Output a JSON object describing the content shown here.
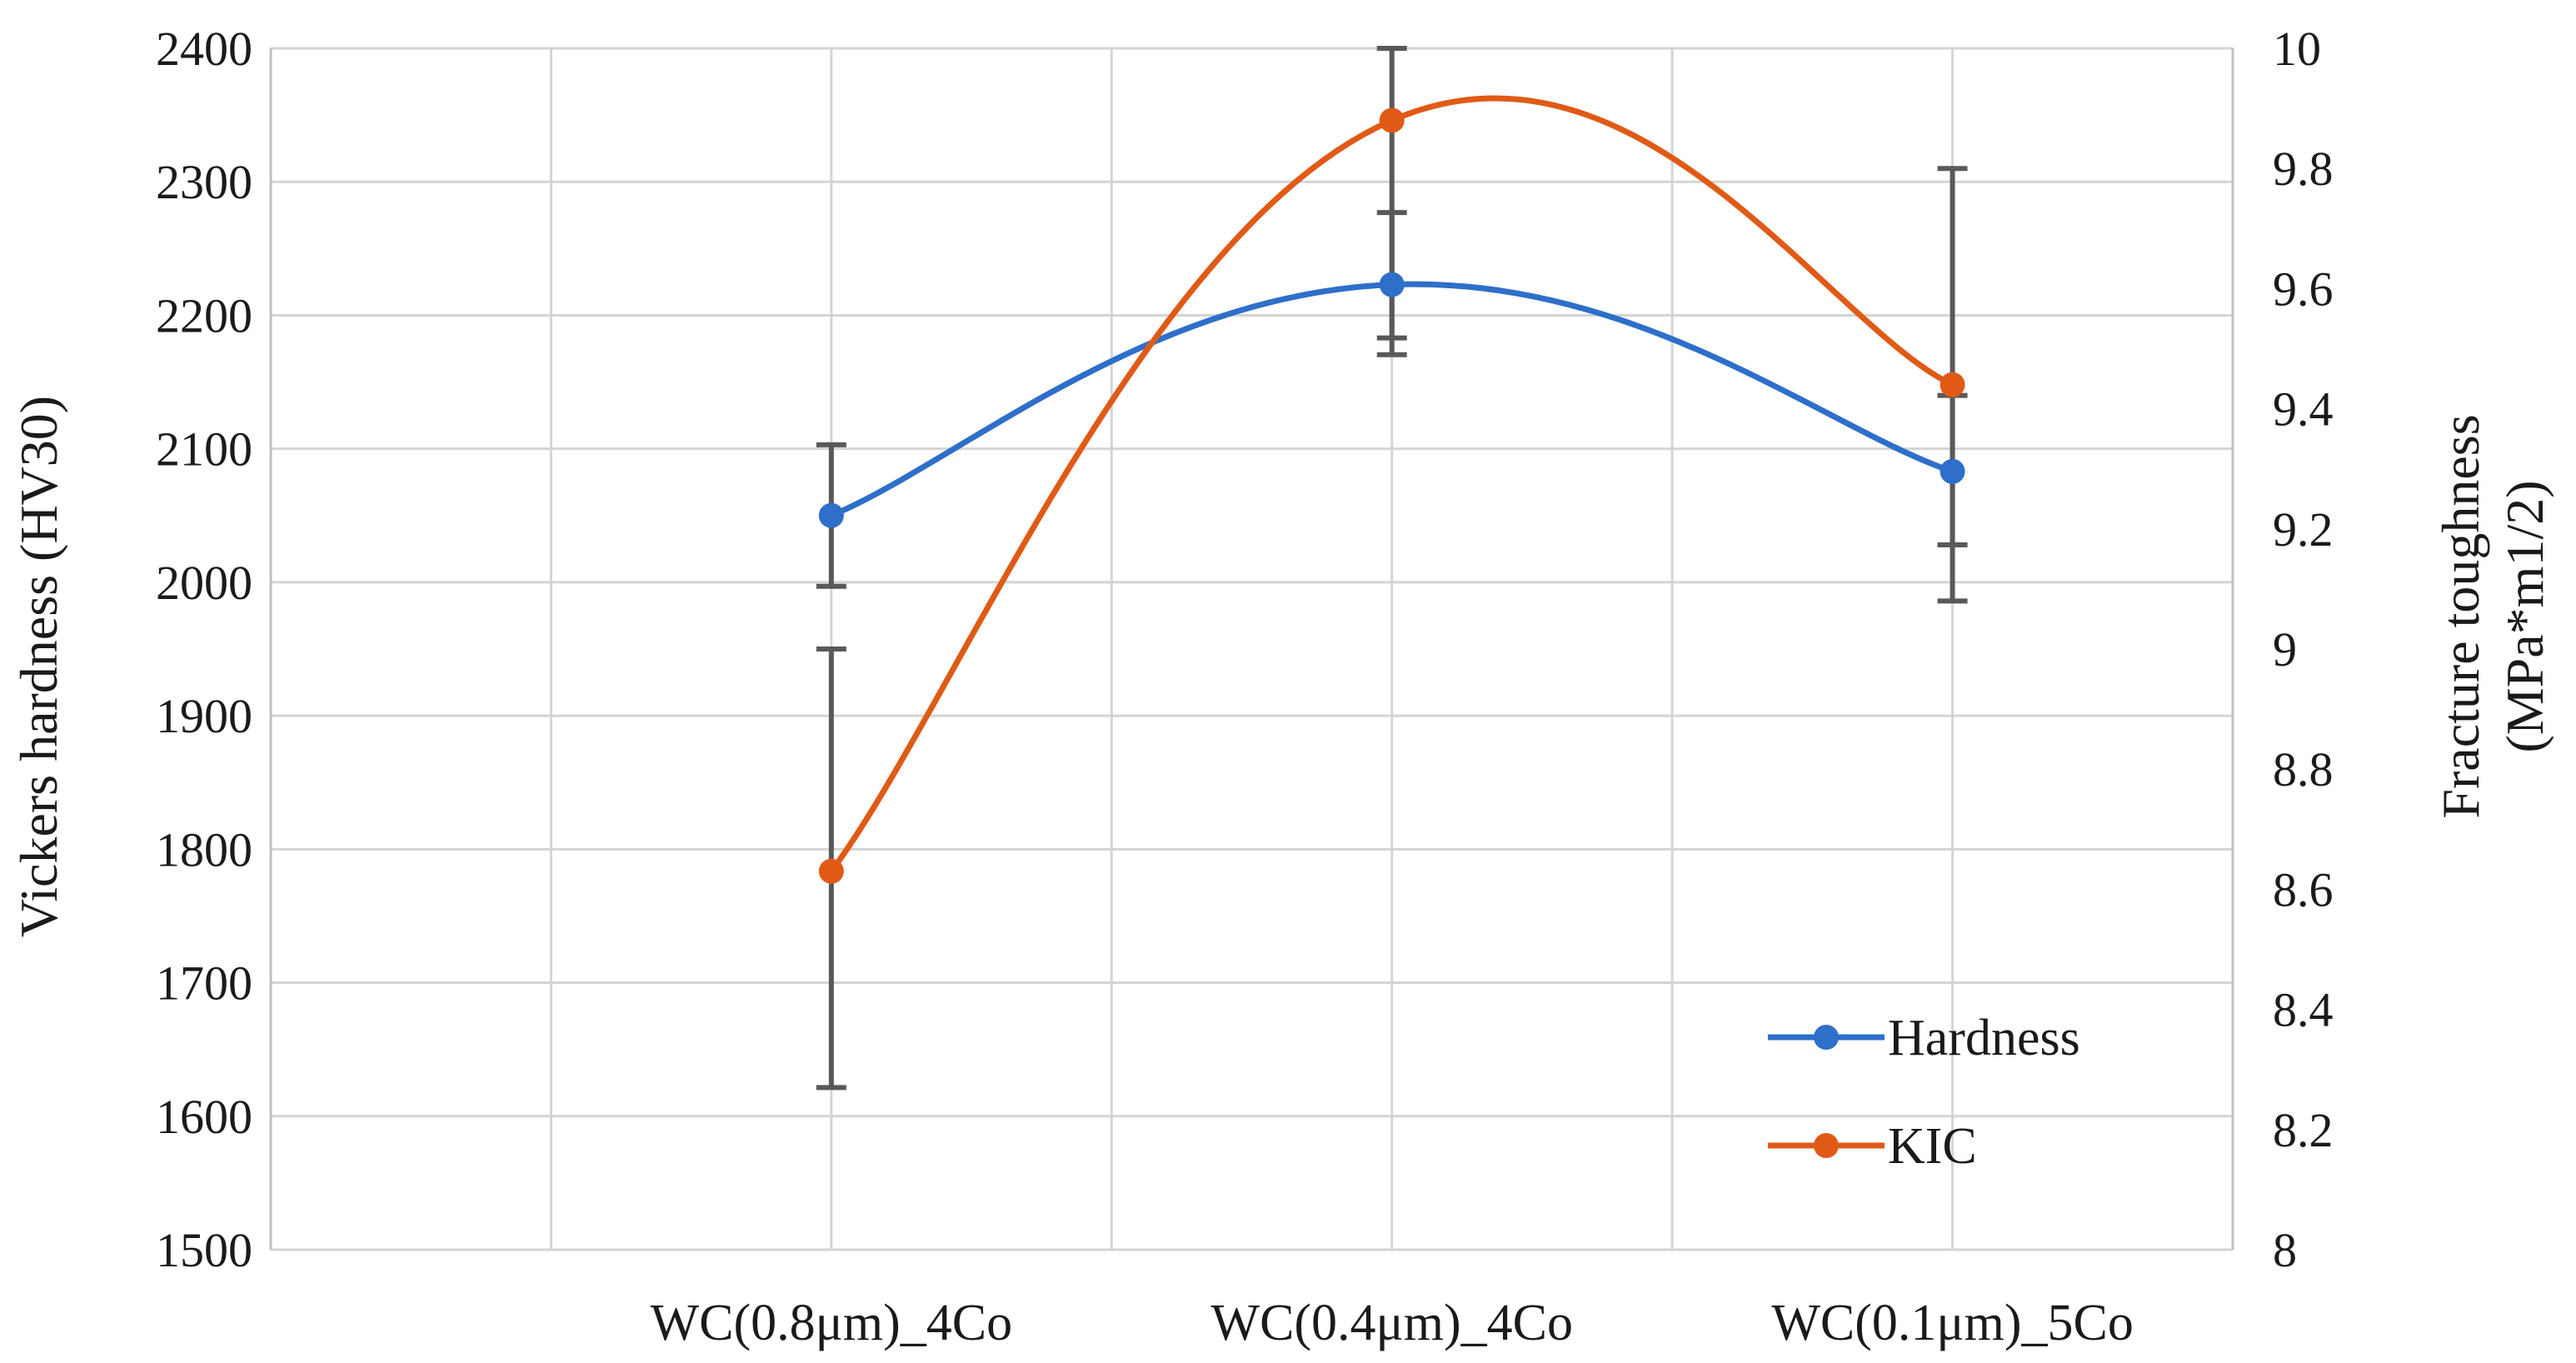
{
  "chart_data": {
    "type": "line",
    "title": "",
    "categories": [
      "WC(0.8μm)_4Co",
      "WC(0.4μm)_4Co",
      "WC(0.1μm)_5Co"
    ],
    "left_axis": {
      "label": "Vickers hardness (HV30)",
      "ylim": [
        1500,
        2400
      ],
      "ticks": [
        "1500",
        "1600",
        "1700",
        "1800",
        "1900",
        "2000",
        "2100",
        "2200",
        "2300",
        "2400"
      ]
    },
    "right_axis": {
      "label_lines": [
        "Fracture toughness",
        "(MPa*m1/2)"
      ],
      "ylim": [
        8,
        10
      ],
      "ticks": [
        "8",
        "8.2",
        "8.4",
        "8.6",
        "8.8",
        "9",
        "9.2",
        "9.4",
        "9.6",
        "9.8",
        "10"
      ]
    },
    "series": [
      {
        "name": "Hardness",
        "axis": "left",
        "color": "#2e6fc9",
        "values": [
          2050,
          2223,
          2083
        ],
        "error_low": [
          1997,
          2183,
          2028
        ],
        "error_high": [
          2103,
          2277,
          2140
        ]
      },
      {
        "name": "KIC",
        "axis": "right",
        "color": "#e05a16",
        "values": [
          8.63,
          9.88,
          9.44
        ],
        "error_low": [
          8.27,
          9.49,
          9.08
        ],
        "error_high": [
          9.0,
          10.0,
          9.8
        ]
      }
    ],
    "legend": {
      "placement": "bottom-right",
      "entries": [
        "Hardness",
        "KIC"
      ]
    },
    "grid": true
  }
}
